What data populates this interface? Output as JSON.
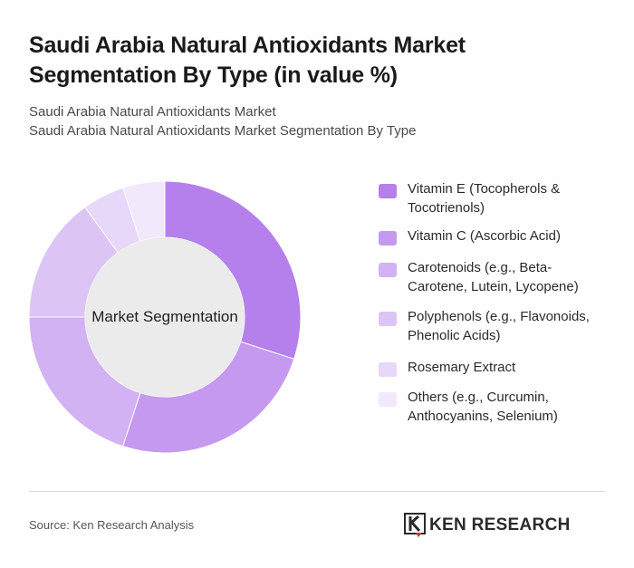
{
  "header": {
    "title_line1": "Saudi Arabia Natural Antioxidants Market",
    "title_line2": "Segmentation By Type (in value %)",
    "subtitle_line1": "Saudi Arabia Natural Antioxidants Market",
    "subtitle_line2": "Saudi Arabia Natural Antioxidants Market Segmentation By Type"
  },
  "chart_data": {
    "type": "pie",
    "donut": true,
    "center_label": "Market Segmentation",
    "legend_position": "right",
    "categories": [
      "Vitamin E (Tocopherols & Tocotrienols)",
      "Vitamin C (Ascorbic Acid)",
      "Carotenoids (e.g., Beta-Carotene, Lutein, Lycopene)",
      "Polyphenols (e.g., Flavonoids, Phenolic Acids)",
      "Rosemary Extract",
      "Others (e.g., Curcumin, Anthocyanins, Selenium)"
    ],
    "legend_lines": [
      [
        "Vitamin E (Tocopherols &",
        "Tocotrienols)"
      ],
      [
        "Vitamin C (Ascorbic Acid)"
      ],
      [
        "Carotenoids (e.g., Beta-",
        "Carotene, Lutein, Lycopene)"
      ],
      [
        "Polyphenols (e.g., Flavonoids,",
        "Phenolic Acids)"
      ],
      [
        "Rosemary Extract"
      ],
      [
        "Others (e.g., Curcumin,",
        "Anthocyanins, Selenium)"
      ]
    ],
    "values": [
      30,
      25,
      20,
      15,
      5,
      5
    ],
    "colors": [
      "#b57fec",
      "#c599f0",
      "#d2b2f3",
      "#dcc4f5",
      "#e7d7f8",
      "#f1e8fb"
    ]
  },
  "footer": {
    "source": "Source: Ken Research Analysis",
    "logo_text": "KEN RESEARCH",
    "logo_icon": "ken-research-logo-icon"
  }
}
